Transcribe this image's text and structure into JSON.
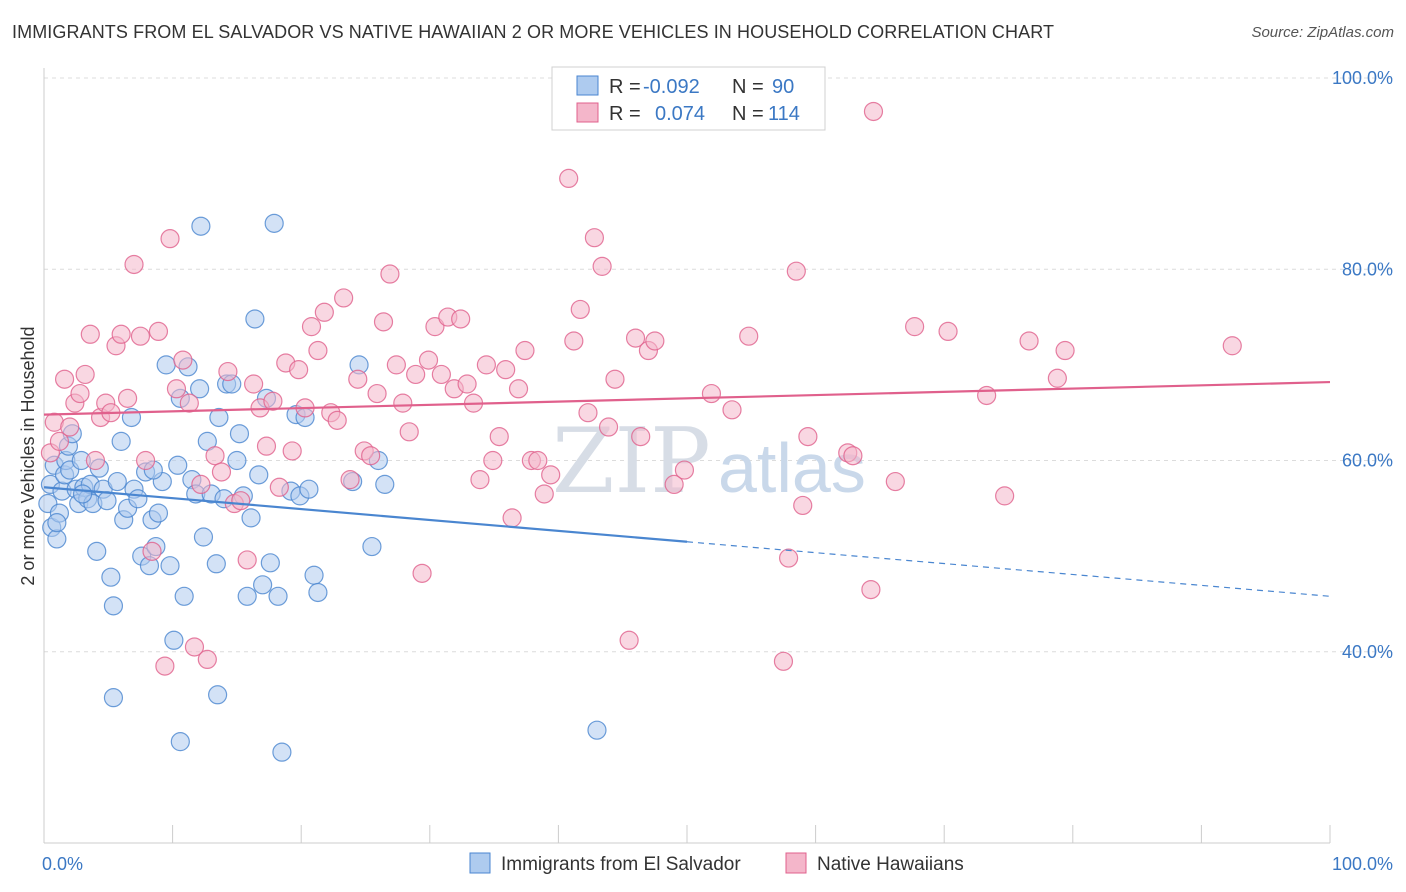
{
  "title": "IMMIGRANTS FROM EL SALVADOR VS NATIVE HAWAIIAN 2 OR MORE VEHICLES IN HOUSEHOLD CORRELATION CHART",
  "source": "Source: ZipAtlas.com",
  "watermark": "ZIPatlas",
  "colors": {
    "blue": "#4a86d0",
    "blue_fill": "#aecbef",
    "pink": "#e0608c",
    "pink_fill": "#f4b6ca",
    "accent_text": "#3b78c4"
  },
  "legend": {
    "rows": [
      {
        "r_label": "R =",
        "r_value": "-0.092",
        "n_label": "N =",
        "n_value": "90"
      },
      {
        "r_label": "R =",
        "r_value": "0.074",
        "n_label": "N =",
        "n_value": "114"
      }
    ]
  },
  "chart_data": {
    "type": "scatter",
    "xlabel": "",
    "ylabel": "2 or more Vehicles in Household",
    "xlim": [
      0,
      100
    ],
    "ylim": [
      20,
      100
    ],
    "x_tick_labels": [
      "0.0%",
      "100.0%"
    ],
    "y_ticks": [
      40,
      60,
      80,
      100
    ],
    "y_tick_labels": [
      "40.0%",
      "60.0%",
      "80.0%",
      "100.0%"
    ],
    "grid": true,
    "series": [
      {
        "name": "Immigrants from El Salvador",
        "color": "blue",
        "trend": {
          "x0": 0,
          "y0": 57.2,
          "x1": 50,
          "y1": 51.5,
          "dash_to_x": 100,
          "dash_y": 45.8
        },
        "points": [
          [
            0.3,
            55.5
          ],
          [
            0.5,
            57.5
          ],
          [
            0.6,
            53
          ],
          [
            0.8,
            59.5
          ],
          [
            1.0,
            51.8
          ],
          [
            1.2,
            54.5
          ],
          [
            1.4,
            56.8
          ],
          [
            1.6,
            58.5
          ],
          [
            1.7,
            60
          ],
          [
            1.9,
            61.5
          ],
          [
            2.0,
            59
          ],
          [
            2.2,
            62.8
          ],
          [
            2.5,
            57
          ],
          [
            2.7,
            55.5
          ],
          [
            2.9,
            60
          ],
          [
            3.1,
            57.2
          ],
          [
            3.4,
            56
          ],
          [
            3.6,
            57.5
          ],
          [
            3.8,
            55.5
          ],
          [
            4.1,
            50.5
          ],
          [
            4.3,
            59.2
          ],
          [
            4.6,
            57
          ],
          [
            4.9,
            55.8
          ],
          [
            5.2,
            47.8
          ],
          [
            5.4,
            44.8
          ],
          [
            5.7,
            57.8
          ],
          [
            6.0,
            62
          ],
          [
            6.2,
            53.8
          ],
          [
            6.5,
            55
          ],
          [
            6.8,
            64.5
          ],
          [
            7.0,
            57
          ],
          [
            7.3,
            56
          ],
          [
            7.6,
            50
          ],
          [
            7.9,
            58.8
          ],
          [
            8.2,
            49
          ],
          [
            8.4,
            53.8
          ],
          [
            8.7,
            51
          ],
          [
            8.9,
            54.5
          ],
          [
            9.2,
            57.8
          ],
          [
            9.5,
            70
          ],
          [
            9.8,
            49
          ],
          [
            10.1,
            41.2
          ],
          [
            10.4,
            59.5
          ],
          [
            10.6,
            66.5
          ],
          [
            10.9,
            45.8
          ],
          [
            11.2,
            69.8
          ],
          [
            11.5,
            58
          ],
          [
            11.8,
            56.5
          ],
          [
            12.1,
            67.5
          ],
          [
            12.4,
            52
          ],
          [
            12.7,
            62
          ],
          [
            13.0,
            56.5
          ],
          [
            13.4,
            49.2
          ],
          [
            13.6,
            64.5
          ],
          [
            14.0,
            56
          ],
          [
            14.2,
            68
          ],
          [
            14.6,
            68
          ],
          [
            15.0,
            60
          ],
          [
            15.2,
            62.8
          ],
          [
            15.5,
            56.3
          ],
          [
            15.8,
            45.8
          ],
          [
            16.1,
            54
          ],
          [
            16.4,
            74.8
          ],
          [
            16.7,
            58.5
          ],
          [
            17.0,
            47
          ],
          [
            17.3,
            66.5
          ],
          [
            17.6,
            49.3
          ],
          [
            17.9,
            84.8
          ],
          [
            18.2,
            45.8
          ],
          [
            18.5,
            29.5
          ],
          [
            19.2,
            56.8
          ],
          [
            19.6,
            64.8
          ],
          [
            19.9,
            56.3
          ],
          [
            20.3,
            64.5
          ],
          [
            20.6,
            57
          ],
          [
            21.0,
            48
          ],
          [
            21.3,
            46.2
          ],
          [
            5.4,
            35.2
          ],
          [
            10.6,
            30.6
          ],
          [
            12.2,
            84.5
          ],
          [
            13.5,
            35.5
          ],
          [
            24.0,
            57.8
          ],
          [
            24.5,
            70
          ],
          [
            25.5,
            51
          ],
          [
            26.0,
            60
          ],
          [
            26.5,
            57.5
          ],
          [
            3.0,
            56.5
          ],
          [
            8.5,
            59.0
          ],
          [
            1.0,
            53.5
          ],
          [
            43.0,
            31.8
          ]
        ]
      },
      {
        "name": "Native Hawaiians",
        "color": "pink",
        "trend": {
          "x0": 0,
          "y0": 64.8,
          "x1": 100,
          "y1": 68.2
        },
        "points": [
          [
            0.5,
            60.8
          ],
          [
            0.8,
            64
          ],
          [
            1.2,
            62
          ],
          [
            1.6,
            68.5
          ],
          [
            2.0,
            63.5
          ],
          [
            2.4,
            66
          ],
          [
            2.8,
            67
          ],
          [
            3.2,
            69
          ],
          [
            3.6,
            73.2
          ],
          [
            4.0,
            60
          ],
          [
            4.4,
            64.5
          ],
          [
            4.8,
            66
          ],
          [
            5.2,
            65
          ],
          [
            5.6,
            72
          ],
          [
            6.0,
            73.2
          ],
          [
            6.5,
            66.5
          ],
          [
            7.0,
            80.5
          ],
          [
            7.5,
            73
          ],
          [
            7.9,
            60
          ],
          [
            8.4,
            50.5
          ],
          [
            8.9,
            73.5
          ],
          [
            9.4,
            38.5
          ],
          [
            9.8,
            83.2
          ],
          [
            10.3,
            67.5
          ],
          [
            10.8,
            70.5
          ],
          [
            11.3,
            66
          ],
          [
            11.7,
            40.5
          ],
          [
            12.2,
            57.5
          ],
          [
            12.7,
            39.2
          ],
          [
            13.3,
            60.5
          ],
          [
            13.8,
            58.8
          ],
          [
            14.3,
            69.3
          ],
          [
            14.8,
            55.5
          ],
          [
            15.3,
            55.8
          ],
          [
            15.8,
            49.6
          ],
          [
            16.3,
            68
          ],
          [
            16.8,
            65.5
          ],
          [
            17.3,
            61.5
          ],
          [
            17.8,
            66.2
          ],
          [
            18.3,
            57.2
          ],
          [
            18.8,
            70.2
          ],
          [
            19.3,
            61
          ],
          [
            19.8,
            69.5
          ],
          [
            20.3,
            65.5
          ],
          [
            20.8,
            74
          ],
          [
            21.3,
            71.5
          ],
          [
            21.8,
            75.5
          ],
          [
            22.3,
            65
          ],
          [
            22.8,
            64.2
          ],
          [
            23.3,
            77
          ],
          [
            23.8,
            58
          ],
          [
            24.4,
            68.5
          ],
          [
            24.9,
            61
          ],
          [
            25.4,
            60.5
          ],
          [
            25.9,
            67
          ],
          [
            26.4,
            74.5
          ],
          [
            26.9,
            79.5
          ],
          [
            27.4,
            70
          ],
          [
            27.9,
            66
          ],
          [
            28.4,
            63
          ],
          [
            28.9,
            69
          ],
          [
            29.4,
            48.2
          ],
          [
            29.9,
            70.5
          ],
          [
            30.4,
            74
          ],
          [
            30.9,
            69
          ],
          [
            31.4,
            75
          ],
          [
            31.9,
            67.5
          ],
          [
            32.4,
            74.8
          ],
          [
            32.9,
            68
          ],
          [
            33.4,
            66
          ],
          [
            33.9,
            58
          ],
          [
            34.4,
            70
          ],
          [
            34.9,
            60
          ],
          [
            35.4,
            62.5
          ],
          [
            35.9,
            69.5
          ],
          [
            36.4,
            54
          ],
          [
            36.9,
            67.5
          ],
          [
            37.4,
            71.5
          ],
          [
            37.9,
            60
          ],
          [
            38.4,
            60
          ],
          [
            38.9,
            56.5
          ],
          [
            39.4,
            58.5
          ],
          [
            40.8,
            89.5
          ],
          [
            41.2,
            72.5
          ],
          [
            41.7,
            75.8
          ],
          [
            42.3,
            65
          ],
          [
            42.8,
            83.3
          ],
          [
            43.4,
            80.3
          ],
          [
            43.9,
            63.5
          ],
          [
            44.4,
            68.5
          ],
          [
            45.5,
            41.2
          ],
          [
            46.0,
            72.8
          ],
          [
            46.4,
            62.5
          ],
          [
            47.0,
            71.5
          ],
          [
            47.5,
            72.5
          ],
          [
            49.0,
            57.5
          ],
          [
            49.8,
            59
          ],
          [
            51.9,
            67
          ],
          [
            53.5,
            65.3
          ],
          [
            54.8,
            73
          ],
          [
            57.5,
            39
          ],
          [
            57.9,
            49.8
          ],
          [
            58.5,
            79.8
          ],
          [
            59.0,
            55.3
          ],
          [
            59.4,
            62.5
          ],
          [
            62.5,
            60.8
          ],
          [
            62.9,
            60.5
          ],
          [
            64.3,
            46.5
          ],
          [
            64.5,
            96.5
          ],
          [
            66.2,
            57.8
          ],
          [
            67.7,
            74
          ],
          [
            70.3,
            73.5
          ],
          [
            73.3,
            66.8
          ],
          [
            74.7,
            56.3
          ],
          [
            76.6,
            72.5
          ],
          [
            78.8,
            68.6
          ],
          [
            79.4,
            71.5
          ],
          [
            92.4,
            72
          ]
        ]
      }
    ]
  },
  "bottom_legend": [
    {
      "label": "Immigrants from El Salvador",
      "color": "blue"
    },
    {
      "label": "Native Hawaiians",
      "color": "pink"
    }
  ]
}
